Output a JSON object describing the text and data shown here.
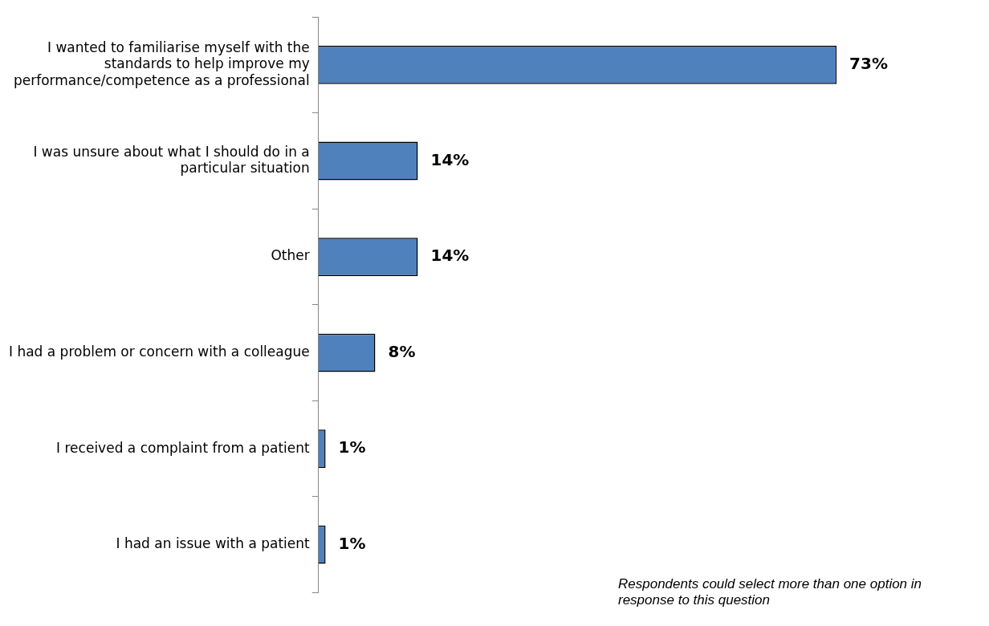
{
  "chart_data": {
    "type": "bar",
    "orientation": "horizontal",
    "categories": [
      "I wanted to familiarise myself with the standards to help improve my performance/competence as a professional",
      "I was unsure about what I should do in a particular situation",
      "Other",
      "I had a problem or concern with a colleague",
      "I received a complaint from a patient",
      "I had an issue with a patient"
    ],
    "values": [
      73,
      14,
      14,
      8,
      1,
      1
    ],
    "color": "#4f81bd",
    "value_labels": [
      "73%",
      "14%",
      "14%",
      "8%",
      "1%",
      "1%"
    ],
    "annotations": [
      "Respondents could select more than one option in response to this question"
    ],
    "legend": false,
    "grid": false
  }
}
